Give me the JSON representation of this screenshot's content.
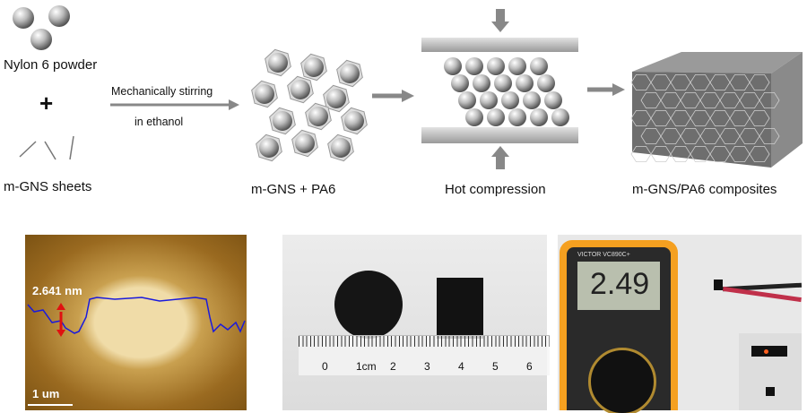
{
  "labels": {
    "nylon": "Nylon 6 powder",
    "plus": "+",
    "sheets": "m-GNS sheets",
    "stir1": "Mechanically stirring",
    "stir2": "in ethanol",
    "mix": "m-GNS + PA6",
    "hot": "Hot compression",
    "comp": "m-GNS/PA6 composites"
  },
  "afm": {
    "height": "2.641 nm",
    "scale": "1 um"
  },
  "ruler": {
    "ticks": [
      "0",
      "1cm",
      "2",
      "3",
      "4",
      "5",
      "6"
    ]
  },
  "meter": {
    "reading": "2.49",
    "brand": "VICTOR VC890C+"
  },
  "colors": {
    "afm": "#b07f2c",
    "profile": "#1a1adc",
    "arrow": "#e01010",
    "meter": "#f5a020"
  }
}
